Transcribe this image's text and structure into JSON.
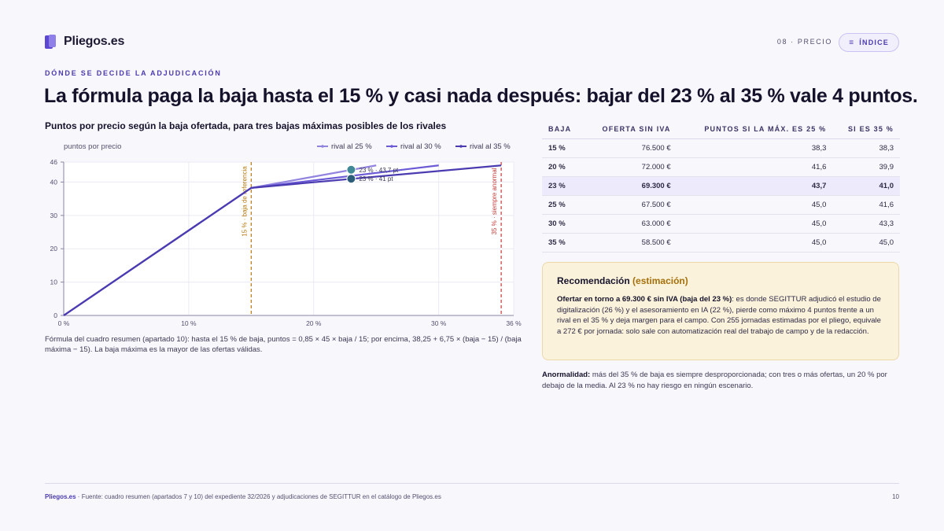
{
  "brand": {
    "name": "Pliegos.es"
  },
  "nav": {
    "section": "08 · PRECIO",
    "index_label": "ÍNDICE",
    "index_icon": "menu-icon"
  },
  "kicker": "DÓNDE SE DECIDE LA ADJUDICACIÓN",
  "headline": "La fórmula paga la baja hasta el 15 % y casi nada después: bajar del 23 % al 35 % vale 4 puntos.",
  "chart_title": "Puntos por precio según la baja ofertada, para tres bajas máximas posibles de los rivales",
  "chart_data": {
    "type": "line",
    "ylabel": "puntos por precio",
    "xlim": [
      0,
      36
    ],
    "ylim": [
      0,
      46
    ],
    "x_ticks": [
      0,
      10,
      20,
      30,
      36
    ],
    "x_tick_labels": [
      "0 %",
      "10 %",
      "20 %",
      "30 %",
      "36 %"
    ],
    "y_ticks": [
      0,
      10,
      20,
      30,
      40,
      46
    ],
    "legend_position": "top-right",
    "series": [
      {
        "name": "rival al 25 %",
        "color": "#9183e0",
        "x": [
          0,
          15,
          25
        ],
        "y": [
          0,
          38.25,
          45
        ]
      },
      {
        "name": "rival al 30 %",
        "color": "#6a5ad6",
        "x": [
          0,
          15,
          30
        ],
        "y": [
          0,
          38.25,
          45
        ]
      },
      {
        "name": "rival al 35 %",
        "color": "#4a3bb0",
        "x": [
          0,
          15,
          35
        ],
        "y": [
          0,
          38.25,
          45
        ]
      }
    ],
    "reference_lines": [
      {
        "x": 15,
        "label": "15 % · baja de referencia",
        "color": "#b77a10"
      },
      {
        "x": 35,
        "label": "35 % · siempre anormal",
        "color": "#c93a3a"
      }
    ],
    "markers": [
      {
        "x": 23,
        "y": 43.7,
        "label": "23 % · 43,7 pt",
        "color": "#3f8a96"
      },
      {
        "x": 23,
        "y": 41.0,
        "label": "23 % · 41 pt",
        "color": "#2c5e7a"
      }
    ]
  },
  "chart_note": "Fórmula del cuadro resumen (apartado 10): hasta el 15 % de baja, puntos = 0,85 × 45 × baja / 15; por encima, 38,25 + 6,75 × (baja − 15) / (baja máxima − 15). La baja máxima es la mayor de las ofertas válidas.",
  "table": {
    "headers": [
      "BAJA",
      "OFERTA SIN IVA",
      "PUNTOS SI LA MÁX. ES 25 %",
      "SI ES 35 %"
    ],
    "rows": [
      [
        "15 %",
        "76.500 €",
        "38,3",
        "38,3"
      ],
      [
        "20 %",
        "72.000 €",
        "41,6",
        "39,9"
      ],
      [
        "23 %",
        "69.300 €",
        "43,7",
        "41,0"
      ],
      [
        "25 %",
        "67.500 €",
        "45,0",
        "41,6"
      ],
      [
        "30 %",
        "63.000 €",
        "45,0",
        "43,3"
      ],
      [
        "35 %",
        "58.500 €",
        "45,0",
        "45,0"
      ]
    ],
    "highlight_row": 2
  },
  "recommendation": {
    "title": "Recomendación",
    "title_tag": "(estimación)",
    "lead": "Ofertar en torno a 69.300 € sin IVA (baja del 23 %)",
    "body": ": es donde SEGITTUR adjudicó el estudio de digitalización (26 %) y el asesoramiento en IA (22 %), pierde como máximo 4 puntos frente a un rival en el 35 % y deja margen para el campo. Con 255 jornadas estimadas por el pliego, equivale a 272 € por jornada: solo sale con automatización real del trabajo de campo y de la redacción."
  },
  "anomaly": {
    "label": "Anormalidad:",
    "text": " más del 35 % de baja es siempre desproporcionada; con tres o más ofertas, un 20 % por debajo de la media. Al 23 % no hay riesgo en ningún escenario."
  },
  "footer": {
    "brand": "Pliegos.es",
    "source": " · Fuente: cuadro resumen (apartados 7 y 10) del expediente 32/2026 y adjudicaciones de SEGITTUR en el catálogo de Pliegos.es",
    "page": "10"
  }
}
